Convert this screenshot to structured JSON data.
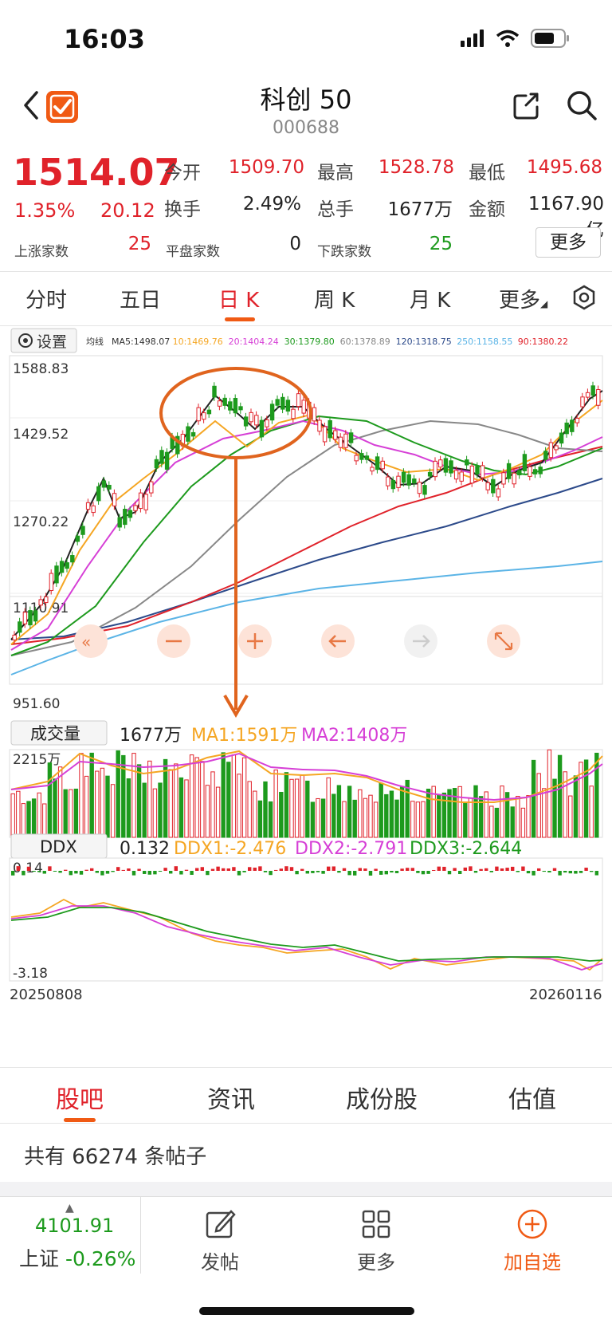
{
  "status": {
    "time": "16:03"
  },
  "header": {
    "title": "科创 50",
    "code": "000688"
  },
  "quote": {
    "price": "1514.07",
    "change_pct": "1.35%",
    "change": "20.12",
    "open_label": "今开",
    "open": "1509.70",
    "high_label": "最高",
    "high": "1528.78",
    "low_label": "最低",
    "low": "1495.68",
    "turnover_label": "换手",
    "turnover": "2.49%",
    "volume_label": "总手",
    "volume": "1677万",
    "amount_label": "金额",
    "amount": "1167.90亿",
    "up_label": "上涨家数",
    "up": "25",
    "flat_label": "平盘家数",
    "flat": "0",
    "down_label": "下跌家数",
    "down": "25",
    "more": "更多"
  },
  "period_tabs": [
    {
      "label": "分时"
    },
    {
      "label": "五日"
    },
    {
      "label": "日 K"
    },
    {
      "label": "周 K"
    },
    {
      "label": "月 K"
    },
    {
      "label": "更多"
    }
  ],
  "kline": {
    "settings_label": "设置",
    "ma_prefix": "均线",
    "ma_items": [
      {
        "text": "MA5:1498.07",
        "color": "#333333"
      },
      {
        "text": "10:1469.76",
        "color": "#f5a623"
      },
      {
        "text": "20:1404.24",
        "color": "#d63fd6"
      },
      {
        "text": "30:1379.80",
        "color": "#1d9a1d"
      },
      {
        "text": "60:1378.89",
        "color": "#888888"
      },
      {
        "text": "120:1318.75",
        "color": "#2c4a8a"
      },
      {
        "text": "250:1158.55",
        "color": "#5bb4e6"
      },
      {
        "text": "90:1380.22",
        "color": "#e0222a"
      }
    ],
    "y_labels": [
      "1588.83",
      "1429.52",
      "1270.22",
      "1110.91",
      "951.60"
    ]
  },
  "volume": {
    "title": "成交量",
    "value": "1677万",
    "ma1": "MA1:1591万",
    "ma2": "MA2:1408万",
    "max_label": "2215万"
  },
  "ddx": {
    "title": "DDX",
    "value": "0.132",
    "ddx1": "DDX1:-2.476",
    "ddx2": "DDX2:-2.791",
    "ddx3": "DDX3:-2.644",
    "max_label": "0.14",
    "min_label": "-3.18",
    "date_start": "20250808",
    "date_end": "20260116"
  },
  "colors": {
    "up": "#e0222a",
    "down": "#1d9a1d",
    "accent": "#f05a14"
  },
  "bottom_tabs": [
    {
      "label": "股吧"
    },
    {
      "label": "资讯"
    },
    {
      "label": "成份股"
    },
    {
      "label": "估值"
    }
  ],
  "posts": {
    "text": "共有 66274 条帖子"
  },
  "bottom_bar": {
    "index_value": "4101.91",
    "index_name": "上证",
    "index_pct": "-0.26%",
    "post_label": "发帖",
    "more_label": "更多",
    "add_label": "加自选"
  }
}
